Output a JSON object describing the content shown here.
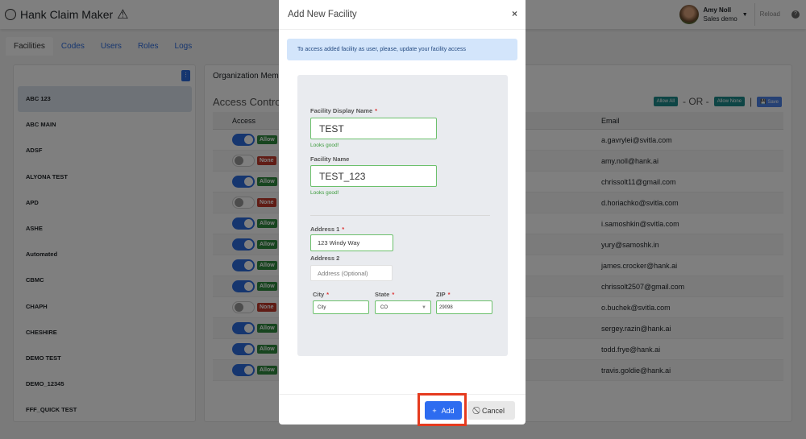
{
  "app": {
    "title": "Hank Claim Maker",
    "user_name": "Amy Noll",
    "user_org": "Sales demo",
    "reload_label": "Reload",
    "help_icon": "question-circle-icon"
  },
  "tabs": [
    "Facilities",
    "Codes",
    "Users",
    "Roles",
    "Logs"
  ],
  "facilities": [
    "ABC 123",
    "ABC MAIN",
    "ADSF",
    "ALYONA TEST",
    "APD",
    "ASHE",
    "Automated",
    "CBMC",
    "CHAPH",
    "CHESHIRE",
    "DEMO TEST",
    "DEMO_12345",
    "FFF_QUICK TEST"
  ],
  "right": {
    "org_members": "Organization Mem",
    "access_control": "Access Control",
    "allow_all": "Allow All",
    "or": "- OR -",
    "allow_none": "Allow None",
    "save": "Save",
    "col_access": "Access",
    "col_email": "Email"
  },
  "rows": [
    {
      "on": true,
      "badge": "Allow",
      "email": "a.gavrylei@svitla.com"
    },
    {
      "on": false,
      "badge": "None",
      "email": "amy.noll@hank.ai"
    },
    {
      "on": true,
      "badge": "Allow",
      "email": "chrissolt11@gmail.com"
    },
    {
      "on": false,
      "badge": "None",
      "email": "d.horiachko@svitla.com"
    },
    {
      "on": true,
      "badge": "Allow",
      "email": "i.samoshkin@svitla.com"
    },
    {
      "on": true,
      "badge": "Allow",
      "email": "yury@samoshk.in"
    },
    {
      "on": true,
      "badge": "Allow",
      "email": "james.crocker@hank.ai"
    },
    {
      "on": true,
      "badge": "Allow",
      "email": "chrissolt2507@gmail.com"
    },
    {
      "on": false,
      "badge": "None",
      "email": "o.buchek@svitla.com"
    },
    {
      "on": true,
      "badge": "Allow",
      "email": "sergey.razin@hank.ai"
    },
    {
      "on": true,
      "badge": "Allow",
      "email": "todd.frye@hank.ai"
    },
    {
      "on": true,
      "badge": "Allow",
      "email": "travis.goldie@hank.ai"
    }
  ],
  "modal": {
    "title": "Add New Facility",
    "close": "×",
    "alert": "To access added facility as user, please, update your facility access",
    "display_name_label": "Facility Display Name",
    "display_name_value": "TEST",
    "ok": "Looks good!",
    "facility_name_label": "Facility Name",
    "facility_name_value": "TEST_123",
    "address1_label": "Address 1",
    "address1_value": "123 Windy Way",
    "address2_label": "Address 2",
    "address2_placeholder": "Address (Optional)",
    "city_label": "City",
    "city_value": "City",
    "state_label": "State",
    "state_value": "CO",
    "zip_label": "ZIP",
    "zip_value": "29098",
    "req": "*",
    "add_label": "Add",
    "cancel_label": "Cancel"
  }
}
